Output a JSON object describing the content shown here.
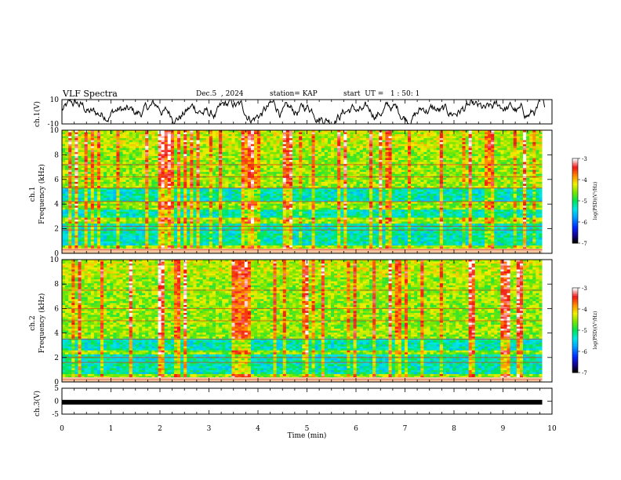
{
  "header": {
    "title": "VLF Spectra",
    "date": "Dec.5  , 2024",
    "station": "station= KAP",
    "start_ut": "start  UT =   1 : 50: 1"
  },
  "chart_data": [
    {
      "type": "line",
      "name": "ch1-waveform",
      "ylabel": "ch.1(V)",
      "ylim": [
        -10,
        10
      ],
      "yticks": [
        "10",
        "-10"
      ],
      "xlim": [
        0,
        10
      ]
    },
    {
      "type": "heatmap",
      "name": "ch1-spectrogram",
      "ylabel": "ch.1\nFrequency (kHz)",
      "ylim": [
        0,
        10
      ],
      "yticks": [
        "0",
        "2",
        "4",
        "6",
        "8",
        "10"
      ],
      "xlim": [
        0,
        10
      ],
      "colorbar": {
        "label": "log(PSD)(V²/Hz)",
        "range": [
          -7,
          -3
        ],
        "ticks": [
          "-3",
          "-4",
          "-5",
          "-6",
          "-7"
        ]
      },
      "bands_khz": [
        [
          0.4,
          2.2
        ],
        [
          2.6,
          3.4
        ],
        [
          4.0,
          5.2
        ]
      ],
      "red_line_khz": [
        0.3,
        1.9,
        2.2,
        4.2,
        5.3,
        6.2,
        7.2
      ]
    },
    {
      "type": "heatmap",
      "name": "ch2-spectrogram",
      "ylabel": "ch.2\nFrequency (kHz)",
      "ylim": [
        0,
        10
      ],
      "yticks": [
        "0",
        "2",
        "4",
        "6",
        "8",
        "10"
      ],
      "xlim": [
        0,
        10
      ],
      "colorbar": {
        "label": "log(PSD)(V²/Hz)",
        "range": [
          -7,
          -3
        ],
        "ticks": [
          "-3",
          "-4",
          "-5",
          "-6",
          "-7"
        ]
      },
      "bands_khz": [
        [
          0.3,
          2.0
        ],
        [
          2.3,
          3.3
        ]
      ],
      "red_line_khz": [
        0.2,
        1.6,
        2.0,
        3.5,
        5.0,
        6.0,
        7.5
      ]
    },
    {
      "type": "line",
      "name": "ch3-signal",
      "ylabel": "ch.3(V)",
      "ylim": [
        -5,
        5
      ],
      "yticks": [
        "5",
        "0",
        "-5"
      ],
      "xlim": [
        0,
        10
      ],
      "level": -0.4,
      "xlabel": "Time  (min)",
      "xticks": [
        "0",
        "1",
        "2",
        "3",
        "4",
        "5",
        "6",
        "7",
        "8",
        "9",
        "10"
      ],
      "data_end_min": 9.8
    }
  ]
}
